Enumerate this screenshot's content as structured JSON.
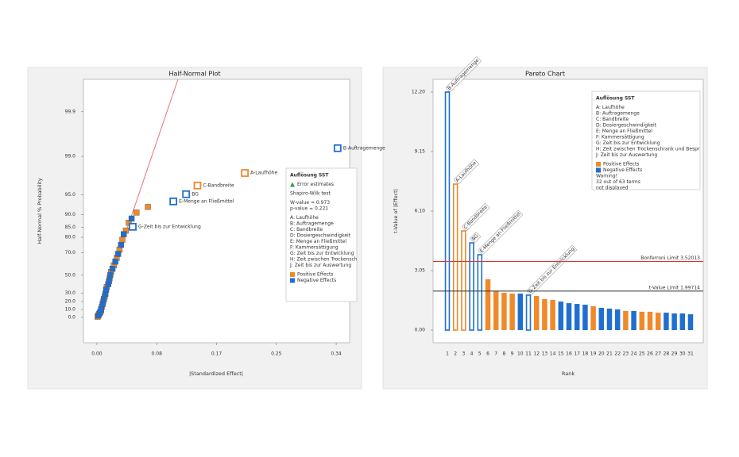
{
  "chart_data": [
    {
      "type": "scatter",
      "title": "Half-Normal Plot",
      "x_label": "|Standardized Effect|",
      "y_label": "Half-Normal % Probability",
      "yscale": "half-normal",
      "xlim": [
        -0.019,
        0.357
      ],
      "ylim": [
        0,
        99.986
      ],
      "xticks": [
        {
          "value": 0,
          "label": "0.00"
        },
        {
          "value": 0.0845,
          "label": "0.08"
        },
        {
          "value": 0.169,
          "label": "0.17"
        },
        {
          "value": 0.2535,
          "label": "0.25"
        },
        {
          "value": 0.338,
          "label": "0.34"
        }
      ],
      "yticks": [
        {
          "value": 0,
          "label": "0.0"
        },
        {
          "value": 10,
          "label": "10.0"
        },
        {
          "value": 20,
          "label": "20.0"
        },
        {
          "value": 30,
          "label": "30.0"
        },
        {
          "value": 50,
          "label": "50.0"
        },
        {
          "value": 70,
          "label": "70.0"
        },
        {
          "value": 80,
          "label": "80.0"
        },
        {
          "value": 85,
          "label": "85.0"
        },
        {
          "value": 90,
          "label": "90.0"
        },
        {
          "value": 95,
          "label": "95.0"
        },
        {
          "value": 99,
          "label": "99.0"
        },
        {
          "value": 99.9,
          "label": "99.9"
        }
      ],
      "series": [
        {
          "name": "Positive Effects",
          "color": "#f0892a",
          "x": [
            0.001,
            0.003,
            0.005,
            0.006,
            0.007,
            0.009,
            0.011,
            0.014,
            0.018,
            0.02,
            0.024,
            0.028,
            0.032,
            0.036,
            0.041,
            0.045,
            0.056,
            0.072,
            0.142,
            0.209
          ],
          "values": [
            0.8,
            4.0,
            7.1,
            8.7,
            13.5,
            19.8,
            26.2,
            37.3,
            46.8,
            53.2,
            59.5,
            65.9,
            72.2,
            78.6,
            83.5,
            87.0,
            90.64,
            92.26,
            96.51,
            97.91
          ],
          "labels": [
            null,
            null,
            null,
            null,
            null,
            null,
            null,
            null,
            null,
            null,
            null,
            null,
            null,
            null,
            null,
            null,
            null,
            null,
            "C-Bandbreite",
            "A-Laufhöhe"
          ]
        },
        {
          "name": "Negative Effects",
          "color": "#1f6fd1",
          "x": [
            0.002,
            0.004,
            0.006,
            0.008,
            0.01,
            0.012,
            0.013,
            0.016,
            0.017,
            0.019,
            0.022,
            0.026,
            0.03,
            0.034,
            0.038,
            0.049,
            0.0506,
            0.108,
            0.126,
            0.34
          ],
          "values": [
            2.4,
            5.6,
            10.3,
            16.7,
            23.0,
            29.4,
            34.1,
            40.5,
            43.7,
            50.0,
            56.3,
            62.7,
            69.0,
            75.4,
            81.7,
            88.6,
            85.27,
            93.64,
            95.12,
            99.32
          ],
          "labels": [
            null,
            null,
            null,
            null,
            null,
            null,
            null,
            null,
            null,
            null,
            null,
            null,
            null,
            null,
            null,
            null,
            "G-Zeit bis zur Entwicklung",
            "E-Menge an Fließmittel",
            "BG",
            "B-Auftragemenge"
          ]
        }
      ],
      "reference_line": {
        "color": "#f07070",
        "x": [
          0,
          0.1145
        ],
        "values": [
          0,
          99.986
        ]
      },
      "info_box": {
        "title": "Auflösung SST",
        "error_label": "Error estimates",
        "error_color": "#2ea043",
        "test": "Shapiro-Wilk test",
        "w_value": "W-value = 0.973",
        "p_value": "p-value = 0.221",
        "factors": [
          "A: Laufhöhe",
          "B: Auftragemenge",
          "C: Bandbreite",
          "D: Dosiergeschwindigkeit",
          "E: Menge an Fließmittel",
          "F: Kammersättigung",
          "G: Zeit bis zur Entwicklung",
          "H: Zeit zwischen Trockenschrank und Besprühen",
          "J: Zeit bis zur Auswertung"
        ]
      }
    },
    {
      "type": "bar",
      "title": "Pareto Chart",
      "x_label": "Rank",
      "y_label": "t-Value of |Effect|",
      "categories": [
        1,
        2,
        3,
        4,
        5,
        6,
        7,
        8,
        9,
        10,
        11,
        12,
        13,
        14,
        15,
        16,
        17,
        18,
        19,
        20,
        21,
        22,
        23,
        24,
        25,
        26,
        27,
        28,
        29,
        30,
        31
      ],
      "values": [
        12.2,
        7.48,
        5.08,
        4.47,
        3.86,
        2.6,
        1.99,
        1.91,
        1.87,
        1.87,
        1.79,
        1.75,
        1.59,
        1.55,
        1.46,
        1.38,
        1.34,
        1.3,
        1.22,
        1.14,
        1.1,
        1.06,
        0.98,
        0.98,
        0.94,
        0.94,
        0.89,
        0.89,
        0.85,
        0.85,
        0.81
      ],
      "colors": [
        "#1f6fd1",
        "#f0892a",
        "#f0892a",
        "#1f6fd1",
        "#1f6fd1",
        "#f0892a",
        "#f0892a",
        "#f0892a",
        "#f0892a",
        "#1f6fd1",
        "#1f6fd1",
        "#f0892a",
        "#f0892a",
        "#f0892a",
        "#1f6fd1",
        "#1f6fd1",
        "#1f6fd1",
        "#1f6fd1",
        "#f0892a",
        "#1f6fd1",
        "#1f6fd1",
        "#1f6fd1",
        "#f0892a",
        "#1f6fd1",
        "#f0892a",
        "#f0892a",
        "#f0892a",
        "#1f6fd1",
        "#1f6fd1",
        "#1f6fd1",
        "#1f6fd1"
      ],
      "labels": [
        "B-Auftragemenge",
        "A-Laufhöhe",
        "C-Bandbreite",
        "BG",
        "E-Menge an Fließmittel",
        null,
        null,
        null,
        null,
        null,
        "G-Zeit bis zur Entwicklung",
        null,
        null,
        null,
        null,
        null,
        null,
        null,
        null,
        null,
        null,
        null,
        null,
        null,
        null,
        null,
        null,
        null,
        null,
        null,
        null
      ],
      "ylim": [
        -0.65,
        12.85
      ],
      "yticks": [
        {
          "value": 0,
          "label": "0.00"
        },
        {
          "value": 3.05,
          "label": "3.05"
        },
        {
          "value": 6.1,
          "label": "6.10"
        },
        {
          "value": 9.15,
          "label": "9.15"
        },
        {
          "value": 12.2,
          "label": "12.20"
        }
      ],
      "reference_lines": [
        {
          "label": "Bonferroni Limit 3.52013",
          "value": 3.52013,
          "color": "#d9312b"
        },
        {
          "label": "t-Value Limit 1.99714",
          "value": 1.99714,
          "color": "#333333"
        }
      ],
      "legend": [
        {
          "name": "Positive Effects",
          "color": "#f0892a"
        },
        {
          "name": "Negative Effects",
          "color": "#1f6fd1"
        }
      ],
      "info_box": {
        "title": "Auflösung SST",
        "factors": [
          "A: Laufhöhe",
          "B: Auftragemenge",
          "C: Bandbreite",
          "D: Dosiergeschwindigkeit",
          "E: Menge an Fließmittel",
          "F: Kammersättigung",
          "G: Zeit bis zur Entwicklung",
          "H: Zeit zwischen Trockenschrank und Besprühen",
          "J: Zeit bis zur Auswertung"
        ],
        "warning": [
          "Warning!",
          "32 out of 63 terms",
          "not displayed"
        ],
        "warning_color": "#e02020"
      }
    }
  ]
}
